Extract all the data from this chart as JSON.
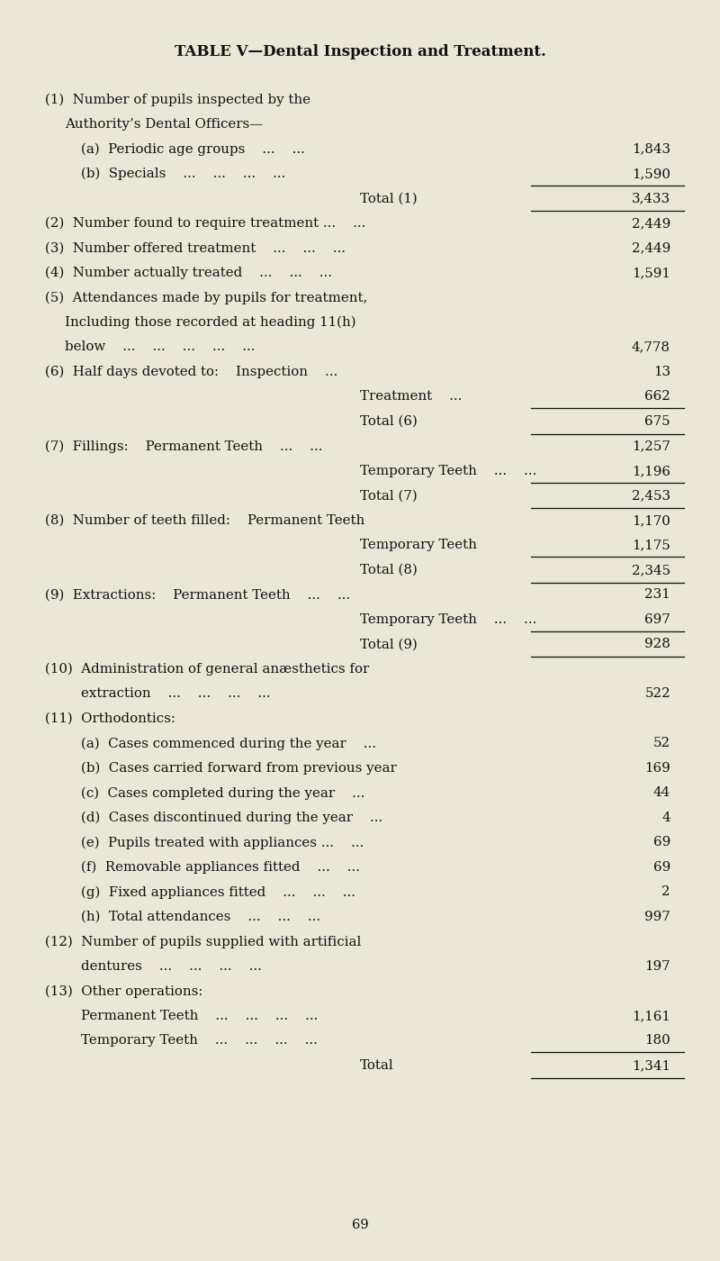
{
  "title": "TABLE V—Dental Inspection and Treatment.",
  "bg_color": "#eae7d8",
  "text_color": "#111111",
  "page_number": "69",
  "rows": [
    {
      "indent": 0,
      "label": "(1)  Number of pupils inspected by the",
      "value": "",
      "line_above": false,
      "line_below": false
    },
    {
      "indent": 1,
      "label": "Authority’s Dental Officers—",
      "value": "",
      "line_above": false,
      "line_below": false
    },
    {
      "indent": 2,
      "label": "(a)  Periodic age groups    ...    ...",
      "value": "1,843",
      "line_above": false,
      "line_below": false
    },
    {
      "indent": 2,
      "label": "(b)  Specials    ...    ...    ...    ...",
      "value": "1,590",
      "line_above": false,
      "line_below": false
    },
    {
      "indent": 3,
      "label": "Total (1)",
      "value": "3,433",
      "line_above": true,
      "line_below": true
    },
    {
      "indent": 0,
      "label": "(2)  Number found to require treatment ...    ...",
      "value": "2,449",
      "line_above": false,
      "line_below": false
    },
    {
      "indent": 0,
      "label": "(3)  Number offered treatment    ...    ...    ...",
      "value": "2,449",
      "line_above": false,
      "line_below": false
    },
    {
      "indent": 0,
      "label": "(4)  Number actually treated    ...    ...    ...",
      "value": "1,591",
      "line_above": false,
      "line_below": false
    },
    {
      "indent": 0,
      "label": "(5)  Attendances made by pupils for treatment,",
      "value": "",
      "line_above": false,
      "line_below": false
    },
    {
      "indent": 1,
      "label": "Including those recorded at heading 11(h)",
      "value": "",
      "line_above": false,
      "line_below": false
    },
    {
      "indent": 1,
      "label": "below    ...    ...    ...    ...    ...",
      "value": "4,778",
      "line_above": false,
      "line_below": false
    },
    {
      "indent": 0,
      "label": "(6)  Half days devoted to:    Inspection    ...",
      "value": "13",
      "line_above": false,
      "line_below": false
    },
    {
      "indent": 3,
      "label": "Treatment    ...",
      "value": "662",
      "line_above": false,
      "line_below": false
    },
    {
      "indent": 3,
      "label": "Total (6)",
      "value": "675",
      "line_above": true,
      "line_below": true
    },
    {
      "indent": 0,
      "label": "(7)  Fillings:    Permanent Teeth    ...    ...",
      "value": "1,257",
      "line_above": false,
      "line_below": false
    },
    {
      "indent": 3,
      "label": "Temporary Teeth    ...    ...",
      "value": "1,196",
      "line_above": false,
      "line_below": false
    },
    {
      "indent": 3,
      "label": "Total (7)",
      "value": "2,453",
      "line_above": true,
      "line_below": true
    },
    {
      "indent": 0,
      "label": "(8)  Number of teeth filled:    Permanent Teeth",
      "value": "1,170",
      "line_above": false,
      "line_below": false
    },
    {
      "indent": 3,
      "label": "Temporary Teeth",
      "value": "1,175",
      "line_above": false,
      "line_below": false
    },
    {
      "indent": 3,
      "label": "Total (8)",
      "value": "2,345",
      "line_above": true,
      "line_below": true
    },
    {
      "indent": 0,
      "label": "(9)  Extractions:    Permanent Teeth    ...    ...",
      "value": "231",
      "line_above": false,
      "line_below": false
    },
    {
      "indent": 3,
      "label": "Temporary Teeth    ...    ...",
      "value": "697",
      "line_above": false,
      "line_below": false
    },
    {
      "indent": 3,
      "label": "Total (9)",
      "value": "928",
      "line_above": true,
      "line_below": true
    },
    {
      "indent": 0,
      "label": "(10)  Administration of general anæsthetics for",
      "value": "",
      "line_above": false,
      "line_below": false
    },
    {
      "indent": 2,
      "label": "extraction    ...    ...    ...    ...",
      "value": "522",
      "line_above": false,
      "line_below": false
    },
    {
      "indent": 0,
      "label": "(11)  Orthodontics:",
      "value": "",
      "line_above": false,
      "line_below": false
    },
    {
      "indent": 2,
      "label": "(a)  Cases commenced during the year    ...",
      "value": "52",
      "line_above": false,
      "line_below": false
    },
    {
      "indent": 2,
      "label": "(b)  Cases carried forward from previous year",
      "value": "169",
      "line_above": false,
      "line_below": false
    },
    {
      "indent": 2,
      "label": "(c)  Cases completed during the year    ...",
      "value": "44",
      "line_above": false,
      "line_below": false
    },
    {
      "indent": 2,
      "label": "(d)  Cases discontinued during the year    ...",
      "value": "4",
      "line_above": false,
      "line_below": false
    },
    {
      "indent": 2,
      "label": "(e)  Pupils treated with appliances ...    ...",
      "value": "69",
      "line_above": false,
      "line_below": false
    },
    {
      "indent": 2,
      "label": "(f)  Removable appliances fitted    ...    ...",
      "value": "69",
      "line_above": false,
      "line_below": false
    },
    {
      "indent": 2,
      "label": "(g)  Fixed appliances fitted    ...    ...    ...",
      "value": "2",
      "line_above": false,
      "line_below": false
    },
    {
      "indent": 2,
      "label": "(h)  Total attendances    ...    ...    ...",
      "value": "997",
      "line_above": false,
      "line_below": false
    },
    {
      "indent": 0,
      "label": "(12)  Number of pupils supplied with artificial",
      "value": "",
      "line_above": false,
      "line_below": false
    },
    {
      "indent": 2,
      "label": "dentures    ...    ...    ...    ...",
      "value": "197",
      "line_above": false,
      "line_below": false
    },
    {
      "indent": 0,
      "label": "(13)  Other operations:",
      "value": "",
      "line_above": false,
      "line_below": false
    },
    {
      "indent": 2,
      "label": "Permanent Teeth    ...    ...    ...    ...",
      "value": "1,161",
      "line_above": false,
      "line_below": false
    },
    {
      "indent": 2,
      "label": "Temporary Teeth    ...    ...    ...    ...",
      "value": "180",
      "line_above": false,
      "line_below": false
    },
    {
      "indent": 3,
      "label": "Total",
      "value": "1,341",
      "line_above": true,
      "line_below": true
    }
  ]
}
